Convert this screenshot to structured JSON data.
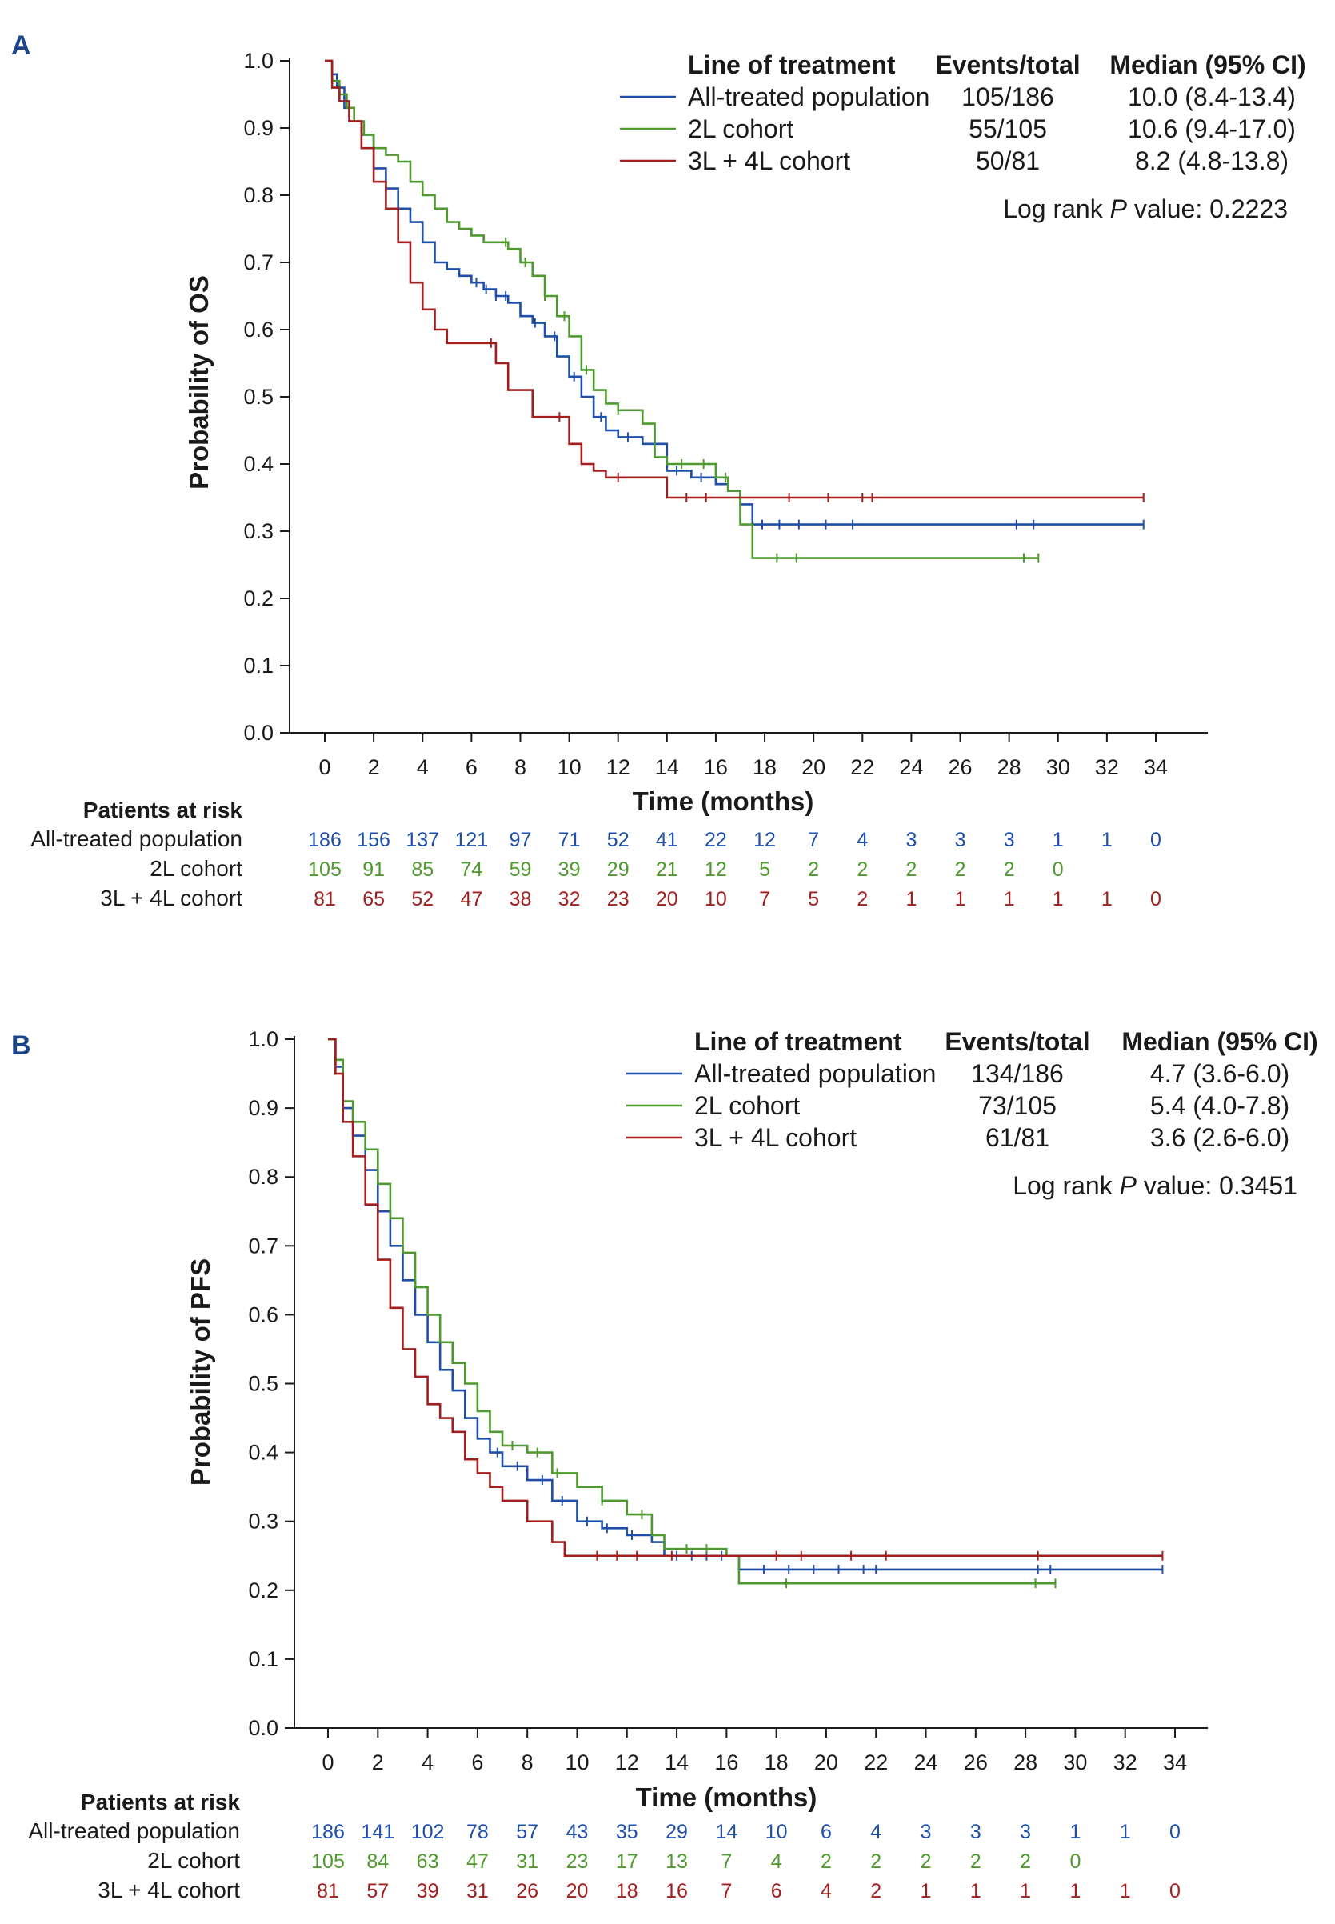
{
  "colors": {
    "all": "#1f4fa8",
    "2L": "#4e9a2e",
    "3L4L": "#a31f1f"
  },
  "chart_data": [
    {
      "panel": "A",
      "type": "line",
      "ylabel": "Probability of OS",
      "xlabel": "Time (months)",
      "xlim": [
        0,
        34
      ],
      "ylim": [
        0,
        1.0
      ],
      "x_ticks": [
        "0",
        "2",
        "4",
        "6",
        "8",
        "10",
        "12",
        "14",
        "16",
        "18",
        "20",
        "22",
        "24",
        "26",
        "28",
        "30",
        "32",
        "34"
      ],
      "y_ticks": [
        "0.0",
        "0.1",
        "0.2",
        "0.3",
        "0.4",
        "0.5",
        "0.6",
        "0.7",
        "0.8",
        "0.9",
        "1.0"
      ],
      "legend_header": {
        "line": "Line of treatment",
        "events": "Events/total",
        "median": "Median (95% CI)"
      },
      "logrank_prefix": "Log rank ",
      "logrank_p": "P",
      "logrank_suffix": " value: 0.2223",
      "risk_title": "Patients at risk",
      "series": [
        {
          "name": "All-treated population",
          "color_key": "all",
          "events": "105/186",
          "median": "10.0 (8.4-13.4)",
          "x": [
            0,
            0.3,
            0.5,
            0.8,
            1.0,
            1.5,
            2.0,
            2.5,
            3.0,
            3.5,
            4.0,
            4.5,
            5.0,
            5.5,
            6.0,
            6.5,
            7.0,
            7.5,
            8.0,
            8.5,
            9.0,
            9.5,
            10.0,
            10.5,
            11.0,
            11.5,
            12.0,
            13.0,
            14.0,
            15.0,
            16.0,
            16.5,
            17.0,
            17.5,
            33.5
          ],
          "y": [
            1.0,
            0.98,
            0.96,
            0.93,
            0.91,
            0.89,
            0.84,
            0.81,
            0.78,
            0.76,
            0.73,
            0.7,
            0.69,
            0.68,
            0.67,
            0.66,
            0.65,
            0.64,
            0.62,
            0.61,
            0.59,
            0.56,
            0.53,
            0.5,
            0.47,
            0.45,
            0.44,
            0.43,
            0.39,
            0.38,
            0.37,
            0.36,
            0.34,
            0.31,
            0.31
          ],
          "censor_x": [
            6.2,
            6.6,
            7.0,
            7.4,
            8.6,
            9.4,
            10.2,
            11.3,
            12.4,
            14.4,
            15.4,
            17.9,
            18.6,
            19.4,
            20.5,
            21.6,
            28.3,
            29.0,
            33.5
          ]
        },
        {
          "name": "2L cohort",
          "color_key": "2L",
          "events": "55/105",
          "median": "10.6 (9.4-17.0)",
          "x": [
            0,
            0.3,
            0.6,
            0.9,
            1.2,
            1.6,
            2.0,
            2.5,
            3.0,
            3.5,
            4.0,
            4.5,
            5.0,
            5.5,
            6.0,
            6.5,
            7.0,
            7.5,
            8.0,
            8.5,
            9.0,
            9.5,
            10.0,
            10.5,
            11.0,
            11.5,
            12.0,
            13.0,
            13.5,
            14.0,
            16.0,
            16.5,
            17.0,
            17.5,
            29.2
          ],
          "y": [
            1.0,
            0.97,
            0.95,
            0.93,
            0.91,
            0.89,
            0.87,
            0.86,
            0.85,
            0.82,
            0.8,
            0.78,
            0.76,
            0.75,
            0.74,
            0.73,
            0.73,
            0.72,
            0.7,
            0.68,
            0.65,
            0.62,
            0.59,
            0.54,
            0.51,
            0.49,
            0.48,
            0.46,
            0.41,
            0.4,
            0.38,
            0.36,
            0.31,
            0.26,
            0.26
          ],
          "censor_x": [
            7.4,
            8.2,
            9.0,
            9.8,
            10.7,
            12.0,
            14.6,
            15.5,
            16.4,
            18.5,
            19.3,
            28.6,
            29.2
          ]
        },
        {
          "name": "3L + 4L cohort",
          "color_key": "3L4L",
          "events": "50/81",
          "median": "8.2 (4.8-13.8)",
          "x": [
            0,
            0.3,
            0.6,
            1.0,
            1.5,
            2.0,
            2.5,
            3.0,
            3.5,
            4.0,
            4.5,
            5.0,
            5.5,
            6.0,
            7.0,
            7.5,
            8.0,
            8.5,
            9.0,
            10.0,
            10.5,
            11.0,
            11.5,
            13.5,
            14.0,
            15.0,
            33.5
          ],
          "y": [
            1.0,
            0.96,
            0.94,
            0.91,
            0.87,
            0.82,
            0.78,
            0.73,
            0.67,
            0.63,
            0.6,
            0.58,
            0.58,
            0.58,
            0.55,
            0.51,
            0.51,
            0.47,
            0.47,
            0.43,
            0.4,
            0.39,
            0.38,
            0.38,
            0.35,
            0.35,
            0.35
          ],
          "censor_x": [
            6.8,
            9.6,
            12.0,
            14.8,
            15.6,
            19.0,
            20.6,
            22.0,
            22.4,
            33.5
          ]
        }
      ],
      "at_risk": [
        {
          "label": "All-treated population",
          "color_key": "all",
          "values": [
            "186",
            "156",
            "137",
            "121",
            "97",
            "71",
            "52",
            "41",
            "22",
            "12",
            "7",
            "4",
            "3",
            "3",
            "3",
            "1",
            "1",
            "0"
          ]
        },
        {
          "label": "2L cohort",
          "color_key": "2L",
          "values": [
            "105",
            "91",
            "85",
            "74",
            "59",
            "39",
            "29",
            "21",
            "12",
            "5",
            "2",
            "2",
            "2",
            "2",
            "2",
            "0"
          ]
        },
        {
          "label": "3L + 4L cohort",
          "color_key": "3L4L",
          "values": [
            "81",
            "65",
            "52",
            "47",
            "38",
            "32",
            "23",
            "20",
            "10",
            "7",
            "5",
            "2",
            "1",
            "1",
            "1",
            "1",
            "1",
            "0"
          ]
        }
      ]
    },
    {
      "panel": "B",
      "type": "line",
      "ylabel": "Probability of PFS",
      "xlabel": "Time (months)",
      "xlim": [
        0,
        34
      ],
      "ylim": [
        0,
        1.0
      ],
      "x_ticks": [
        "0",
        "2",
        "4",
        "6",
        "8",
        "10",
        "12",
        "14",
        "16",
        "18",
        "20",
        "22",
        "24",
        "26",
        "28",
        "30",
        "32",
        "34"
      ],
      "y_ticks": [
        "0.0",
        "0.1",
        "0.2",
        "0.3",
        "0.4",
        "0.5",
        "0.6",
        "0.7",
        "0.8",
        "0.9",
        "1.0"
      ],
      "legend_header": {
        "line": "Line of treatment",
        "events": "Events/total",
        "median": "Median (95% CI)"
      },
      "logrank_prefix": "Log rank ",
      "logrank_p": "P",
      "logrank_suffix": " value: 0.3451",
      "risk_title": "Patients at risk",
      "series": [
        {
          "name": "All-treated population",
          "color_key": "all",
          "events": "134/186",
          "median": "4.7 (3.6-6.0)",
          "x": [
            0,
            0.3,
            0.6,
            1.0,
            1.5,
            2.0,
            2.5,
            3.0,
            3.5,
            4.0,
            4.5,
            5.0,
            5.5,
            6.0,
            6.5,
            7.0,
            8.0,
            9.0,
            10.0,
            11.0,
            12.0,
            13.0,
            13.5,
            16.0,
            16.5,
            33.5
          ],
          "y": [
            1.0,
            0.96,
            0.9,
            0.86,
            0.81,
            0.75,
            0.7,
            0.65,
            0.6,
            0.56,
            0.52,
            0.49,
            0.45,
            0.42,
            0.4,
            0.38,
            0.36,
            0.33,
            0.3,
            0.29,
            0.28,
            0.27,
            0.25,
            0.25,
            0.23,
            0.23
          ],
          "censor_x": [
            6.8,
            7.6,
            8.6,
            9.4,
            10.4,
            11.2,
            12.2,
            14.0,
            14.6,
            15.2,
            15.8,
            17.5,
            18.5,
            19.5,
            20.5,
            21.5,
            22.0,
            28.5,
            29.0,
            33.5
          ]
        },
        {
          "name": "2L cohort",
          "color_key": "2L",
          "events": "73/105",
          "median": "5.4 (4.0-7.8)",
          "x": [
            0,
            0.3,
            0.6,
            1.0,
            1.5,
            2.0,
            2.5,
            3.0,
            3.5,
            4.0,
            4.5,
            5.0,
            5.5,
            6.0,
            6.5,
            7.0,
            8.0,
            9.0,
            10.0,
            11.0,
            12.0,
            13.0,
            13.5,
            16.0,
            16.5,
            29.2
          ],
          "y": [
            1.0,
            0.97,
            0.91,
            0.88,
            0.84,
            0.79,
            0.74,
            0.69,
            0.64,
            0.6,
            0.56,
            0.53,
            0.5,
            0.46,
            0.43,
            0.41,
            0.4,
            0.37,
            0.35,
            0.33,
            0.31,
            0.28,
            0.26,
            0.25,
            0.21,
            0.21
          ],
          "censor_x": [
            7.4,
            8.4,
            9.2,
            11.0,
            12.6,
            14.4,
            15.2,
            18.4,
            28.4,
            29.2
          ]
        },
        {
          "name": "3L + 4L cohort",
          "color_key": "3L4L",
          "events": "61/81",
          "median": "3.6 (2.6-6.0)",
          "x": [
            0,
            0.3,
            0.6,
            1.0,
            1.5,
            2.0,
            2.5,
            3.0,
            3.5,
            4.0,
            4.5,
            5.0,
            5.5,
            6.0,
            6.5,
            7.0,
            8.0,
            9.0,
            9.5,
            10.0,
            33.5
          ],
          "y": [
            1.0,
            0.95,
            0.88,
            0.83,
            0.76,
            0.68,
            0.61,
            0.55,
            0.51,
            0.47,
            0.45,
            0.43,
            0.39,
            0.37,
            0.35,
            0.33,
            0.3,
            0.27,
            0.25,
            0.25,
            0.25
          ],
          "censor_x": [
            10.8,
            11.6,
            12.4,
            13.8,
            18.0,
            19.0,
            21.0,
            22.4,
            28.5,
            33.5
          ]
        }
      ],
      "at_risk": [
        {
          "label": "All-treated population",
          "color_key": "all",
          "values": [
            "186",
            "141",
            "102",
            "78",
            "57",
            "43",
            "35",
            "29",
            "14",
            "10",
            "6",
            "4",
            "3",
            "3",
            "3",
            "1",
            "1",
            "0"
          ]
        },
        {
          "label": "2L cohort",
          "color_key": "2L",
          "values": [
            "105",
            "84",
            "63",
            "47",
            "31",
            "23",
            "17",
            "13",
            "7",
            "4",
            "2",
            "2",
            "2",
            "2",
            "2",
            "0"
          ]
        },
        {
          "label": "3L + 4L cohort",
          "color_key": "3L4L",
          "values": [
            "81",
            "57",
            "39",
            "31",
            "26",
            "20",
            "18",
            "16",
            "7",
            "6",
            "4",
            "2",
            "1",
            "1",
            "1",
            "1",
            "1",
            "0"
          ]
        }
      ]
    }
  ]
}
